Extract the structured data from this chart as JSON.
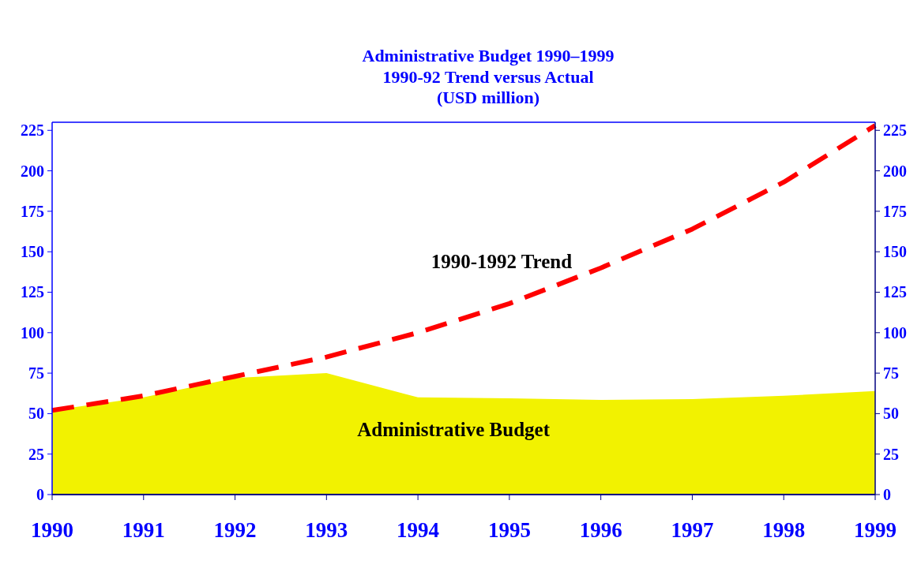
{
  "chart_data": {
    "type": "area",
    "title": "Administrative Budget 1990–1999",
    "subtitle": "1990-92 Trend versus Actual\n(USD million)",
    "x": [
      1990,
      1991,
      1992,
      1993,
      1994,
      1995,
      1996,
      1997,
      1998,
      1999
    ],
    "series": [
      {
        "name": "Administrative Budget",
        "color": "#f2f200",
        "values": [
          52,
          60,
          72,
          75,
          60,
          59.5,
          58.5,
          59,
          61,
          64
        ]
      },
      {
        "name": "1990-1992 Trend",
        "type": "line",
        "color": "#ff0000",
        "line_style": "dashed",
        "values": [
          52,
          61,
          73,
          85,
          100,
          118,
          140,
          164,
          193,
          228
        ]
      }
    ],
    "xlim": [
      1990,
      1999
    ],
    "xticks": [
      1990,
      1991,
      1992,
      1993,
      1994,
      1995,
      1996,
      1997,
      1998,
      1999
    ],
    "ylim": [
      0,
      230
    ],
    "yticks": [
      0,
      25,
      50,
      75,
      100,
      125,
      150,
      175,
      200,
      225
    ],
    "y2lim": [
      0,
      230
    ],
    "y2ticks": [
      0,
      25,
      50,
      75,
      100,
      125,
      150,
      175,
      200,
      225
    ],
    "grid": false
  }
}
